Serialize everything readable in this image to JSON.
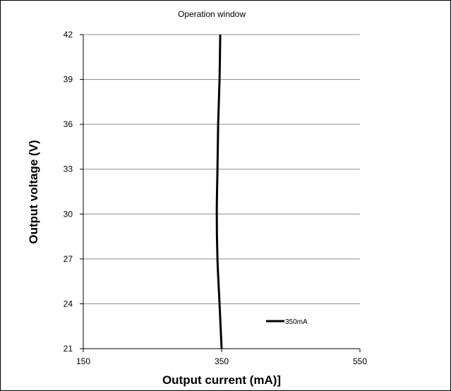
{
  "chart_data": {
    "type": "line",
    "title": "Operation window",
    "xlabel": "Output current (mA)]",
    "ylabel": "Output voltage (V)",
    "xlim": [
      150,
      550
    ],
    "ylim": [
      21,
      42
    ],
    "x_ticks": [
      "150",
      "350",
      "550"
    ],
    "y_ticks": [
      "21",
      "24",
      "27",
      "30",
      "33",
      "36",
      "39",
      "42"
    ],
    "grid": "horizontal",
    "legend_position": "bottom-right",
    "series": [
      {
        "name": "350mA",
        "color": "#000000",
        "points": [
          {
            "x": 350,
            "y": 21
          },
          {
            "x": 347,
            "y": 24
          },
          {
            "x": 344,
            "y": 27
          },
          {
            "x": 343,
            "y": 30
          },
          {
            "x": 344,
            "y": 33
          },
          {
            "x": 345,
            "y": 36
          },
          {
            "x": 347,
            "y": 39
          },
          {
            "x": 348,
            "y": 42
          }
        ]
      }
    ]
  }
}
